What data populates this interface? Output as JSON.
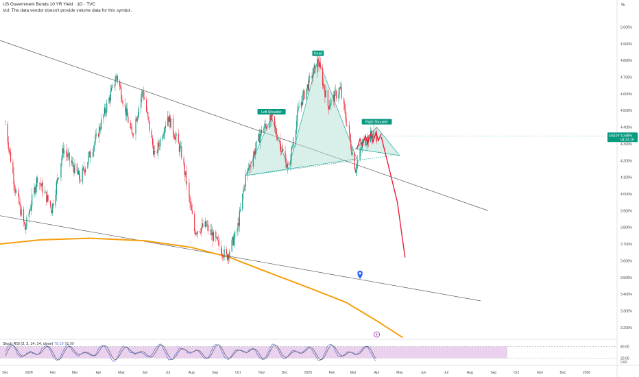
{
  "header": {
    "title": "US Government Bonds 10 YR Yield · 1D · TVC",
    "volume_note": "Vol: The data vendor doesn't provide volume data for this symbol."
  },
  "colors": {
    "up": "#089981",
    "down": "#f23645",
    "pattern_fill": "#b2dfd6",
    "pattern_line": "#26a69a",
    "projection": "#e91e3a",
    "curve": "#f59e0b",
    "rsi_band": "#e1bee7",
    "rsi_k": "#5b6fd6",
    "rsi_d": "#555555",
    "marker": "#2962ff"
  },
  "chart_data": {
    "type": "candlestick",
    "symbol": "US10Y",
    "y_unit": "%",
    "y_ticks": [
      "5.000%",
      "4.900%",
      "4.800%",
      "4.700%",
      "4.600%",
      "4.500%",
      "4.400%",
      "4.300%",
      "4.200%",
      "4.100%",
      "4.000%",
      "3.900%",
      "3.800%",
      "3.700%",
      "3.600%",
      "3.500%",
      "3.400%",
      "3.300%",
      "3.200%"
    ],
    "ylim": [
      3.15,
      5.08
    ],
    "x_ticks": [
      "Dec",
      "2024",
      "Feb",
      "Mar",
      "Apr",
      "May",
      "Jun",
      "Jul",
      "Aug",
      "Sep",
      "Oct",
      "Nov",
      "Dec",
      "2025",
      "Feb",
      "Mar",
      "Apr",
      "May",
      "Jun",
      "Jul",
      "Aug",
      "Sep",
      "Oct",
      "Nov",
      "Dec",
      "2026"
    ],
    "last_price": {
      "symbol": "US10Y",
      "value": "4.348%",
      "countdown": "04:22:19"
    },
    "path": [
      [
        "2023-12-01",
        4.42
      ],
      [
        "2023-12-14",
        4.03
      ],
      [
        "2023-12-27",
        3.79
      ],
      [
        "2024-01-12",
        4.1
      ],
      [
        "2024-01-31",
        3.91
      ],
      [
        "2024-02-15",
        4.27
      ],
      [
        "2024-03-08",
        4.09
      ],
      [
        "2024-03-29",
        4.33
      ],
      [
        "2024-04-25",
        4.71
      ],
      [
        "2024-05-15",
        4.35
      ],
      [
        "2024-05-29",
        4.62
      ],
      [
        "2024-06-14",
        4.22
      ],
      [
        "2024-07-01",
        4.47
      ],
      [
        "2024-07-19",
        4.24
      ],
      [
        "2024-08-05",
        3.78
      ],
      [
        "2024-08-20",
        3.81
      ],
      [
        "2024-09-16",
        3.62
      ],
      [
        "2024-09-30",
        3.78
      ],
      [
        "2024-10-11",
        4.1
      ],
      [
        "2024-11-01",
        4.38
      ],
      [
        "2024-11-14",
        4.45
      ],
      [
        "2024-12-06",
        4.15
      ],
      [
        "2024-12-20",
        4.52
      ],
      [
        "2025-01-14",
        4.8
      ],
      [
        "2025-01-27",
        4.53
      ],
      [
        "2025-02-12",
        4.63
      ],
      [
        "2025-03-04",
        4.15
      ],
      [
        "2025-03-14",
        4.31
      ],
      [
        "2025-03-27",
        4.36
      ],
      [
        "2025-04-01",
        4.348
      ]
    ],
    "annotations": [
      {
        "label": "Left Shoulder",
        "date": "2024-11-14",
        "value": 4.46
      },
      {
        "label": "Head",
        "date": "2025-01-14",
        "value": 4.81
      },
      {
        "label": "Right Shoulder",
        "date": "2025-04-01",
        "value": 4.4
      }
    ],
    "projection": [
      [
        "2025-04-07",
        4.34
      ],
      [
        "2025-04-20",
        4.1
      ],
      [
        "2025-04-28",
        3.95
      ],
      [
        "2025-05-08",
        3.62
      ]
    ],
    "indicator": {
      "name": "Stoch RSI",
      "label": "Stoch RSI (3, 3, 14, 14, close)",
      "k_value": "79.19",
      "d_value": "76.09",
      "ticks": [
        "80.00",
        "20.00",
        "0.00"
      ],
      "band": [
        20,
        80
      ],
      "ylim": [
        0,
        100
      ]
    }
  }
}
